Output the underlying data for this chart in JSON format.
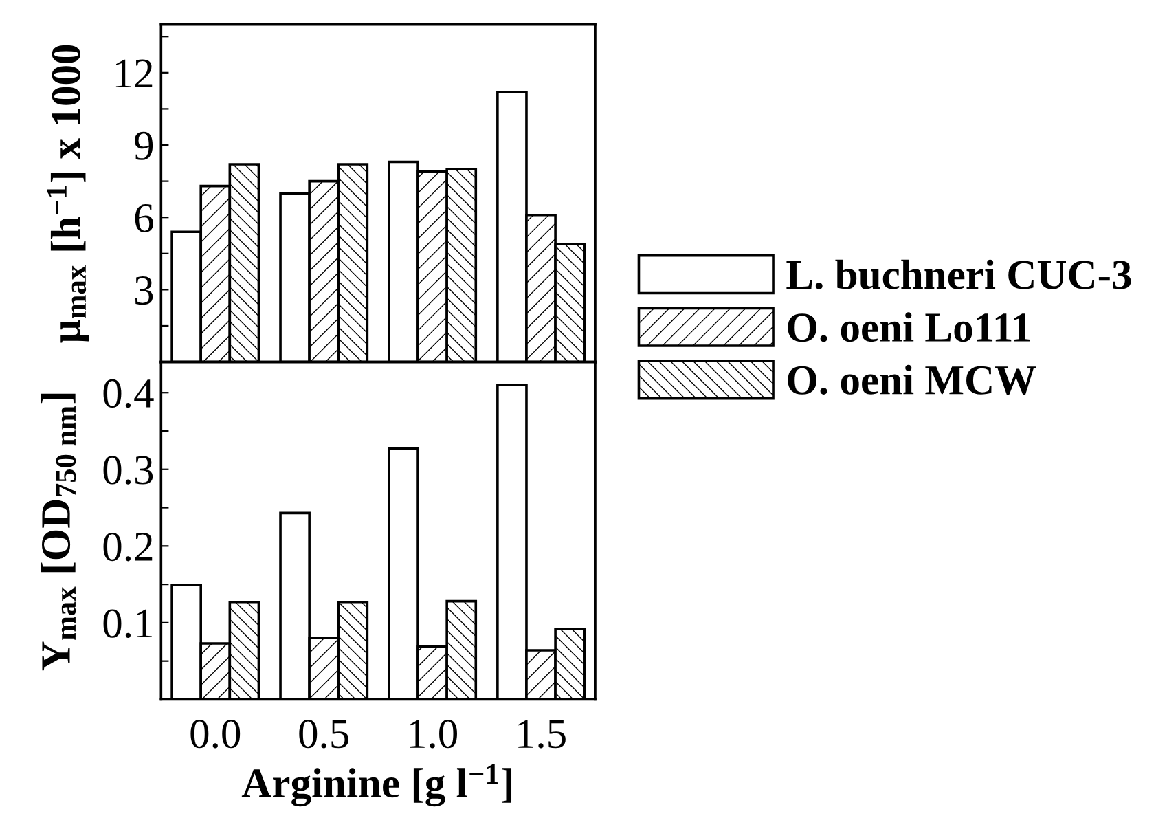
{
  "chart_data": [
    {
      "type": "bar",
      "categories": [
        "0.0",
        "0.5",
        "1.0",
        "1.5"
      ],
      "ylabel": "μ$_{max}$ [h$^{−1}$] x 1000",
      "ylim": [
        0,
        14
      ],
      "yticks": [
        {
          "value": 1.5,
          "label": null
        },
        3,
        {
          "value": 4.5,
          "label": null
        },
        6,
        {
          "value": 7.5,
          "label": null
        },
        9,
        {
          "value": 10.5,
          "label": null
        },
        12,
        {
          "value": 13.5,
          "label": null
        }
      ],
      "tick_labels": "y",
      "legend": "right",
      "series": [
        {
          "name": "L. buchneri CUC-3",
          "color": "#ffffff",
          "values": [
            5.4,
            7.0,
            8.3,
            11.2
          ]
        },
        {
          "name": "O. oeni Lo111",
          "color": "#ffffff",
          "values": [
            7.3,
            7.5,
            7.9,
            6.1
          ]
        },
        {
          "name": "O. oeni MCW",
          "color": "#ffffff",
          "values": [
            8.2,
            8.2,
            8.0,
            4.9
          ]
        }
      ]
    },
    {
      "type": "bar",
      "categories": [
        "0.0",
        "0.5",
        "1.0",
        "1.5"
      ],
      "ylabel": "Y$_{max}$ [OD$_{750 nm}$]",
      "xlabel": "Arginine [g l$^{−1}$]",
      "ylim": [
        0,
        0.44
      ],
      "yticks": [
        {
          "value": 0.05,
          "label": null
        },
        0.1,
        {
          "value": 0.15,
          "label": null
        },
        0.2,
        {
          "value": 0.25,
          "label": null
        },
        0.3,
        {
          "value": 0.35,
          "label": null
        },
        0.4
      ],
      "series": [
        {
          "color": "#ffffff",
          "values": [
            0.149,
            0.243,
            0.327,
            0.41
          ]
        },
        {
          "color": "#ffffff",
          "values": [
            0.073,
            0.08,
            0.069,
            0.064
          ]
        },
        {
          "color": "#ffffff",
          "values": [
            0.127,
            0.127,
            0.128,
            0.092
          ]
        }
      ]
    }
  ]
}
